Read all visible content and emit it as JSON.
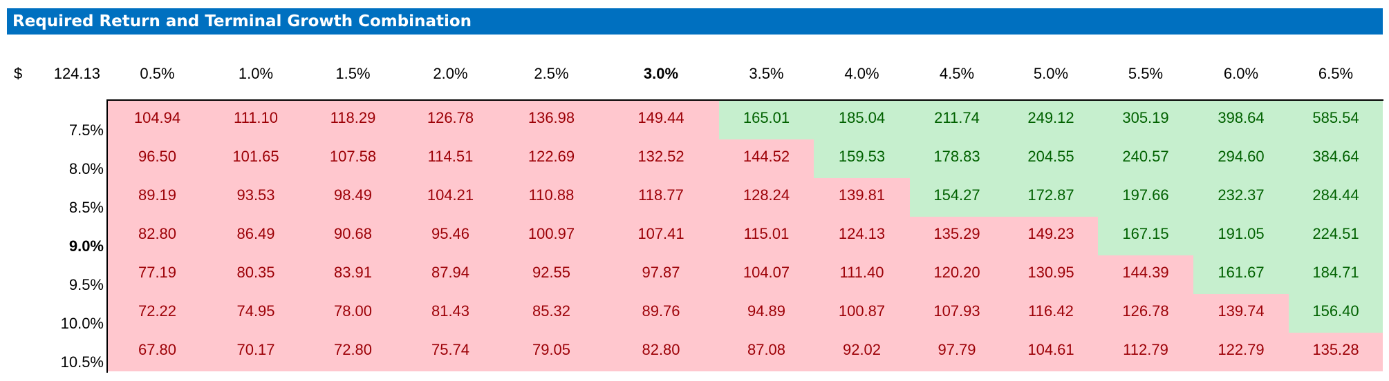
{
  "title": "Required Return and Terminal Growth Combination",
  "corner": {
    "currency": "$",
    "value": "124.13"
  },
  "growth_rates": [
    "0.5%",
    "1.0%",
    "1.5%",
    "2.0%",
    "2.5%",
    "3.0%",
    "3.5%",
    "4.0%",
    "4.5%",
    "5.0%",
    "5.5%",
    "6.0%",
    "6.5%"
  ],
  "required_returns": [
    "7.5%",
    "8.0%",
    "8.5%",
    "9.0%",
    "9.5%",
    "10.0%",
    "10.5%"
  ],
  "colors": {
    "above": "#c6efce",
    "above_text": "#006100",
    "below": "#ffc7ce",
    "below_text": "#9c0006",
    "header_bar": "#0070c0"
  },
  "rows": [
    {
      "values": [
        "104.94",
        "111.10",
        "118.29",
        "126.78",
        "136.98",
        "149.44",
        "165.01",
        "185.04",
        "211.74",
        "249.12",
        "305.19",
        "398.64",
        "585.54"
      ],
      "above_from": 6
    },
    {
      "values": [
        "96.50",
        "101.65",
        "107.58",
        "114.51",
        "122.69",
        "132.52",
        "144.52",
        "159.53",
        "178.83",
        "204.55",
        "240.57",
        "294.60",
        "384.64"
      ],
      "above_from": 7
    },
    {
      "values": [
        "89.19",
        "93.53",
        "98.49",
        "104.21",
        "110.88",
        "118.77",
        "128.24",
        "139.81",
        "154.27",
        "172.87",
        "197.66",
        "232.37",
        "284.44"
      ],
      "above_from": 8
    },
    {
      "values": [
        "82.80",
        "86.49",
        "90.68",
        "95.46",
        "100.97",
        "107.41",
        "115.01",
        "124.13",
        "135.29",
        "149.23",
        "167.15",
        "191.05",
        "224.51"
      ],
      "above_from": 10
    },
    {
      "values": [
        "77.19",
        "80.35",
        "83.91",
        "87.94",
        "92.55",
        "97.87",
        "104.07",
        "111.40",
        "120.20",
        "130.95",
        "144.39",
        "161.67",
        "184.71"
      ],
      "above_from": 11
    },
    {
      "values": [
        "72.22",
        "74.95",
        "78.00",
        "81.43",
        "85.32",
        "89.76",
        "94.89",
        "100.87",
        "107.93",
        "116.42",
        "126.78",
        "139.74",
        "156.40"
      ],
      "above_from": 12
    },
    {
      "values": [
        "67.80",
        "70.17",
        "72.80",
        "75.74",
        "79.05",
        "82.80",
        "87.08",
        "92.02",
        "97.79",
        "104.61",
        "112.79",
        "122.79",
        "135.28"
      ],
      "above_from": 13
    }
  ]
}
